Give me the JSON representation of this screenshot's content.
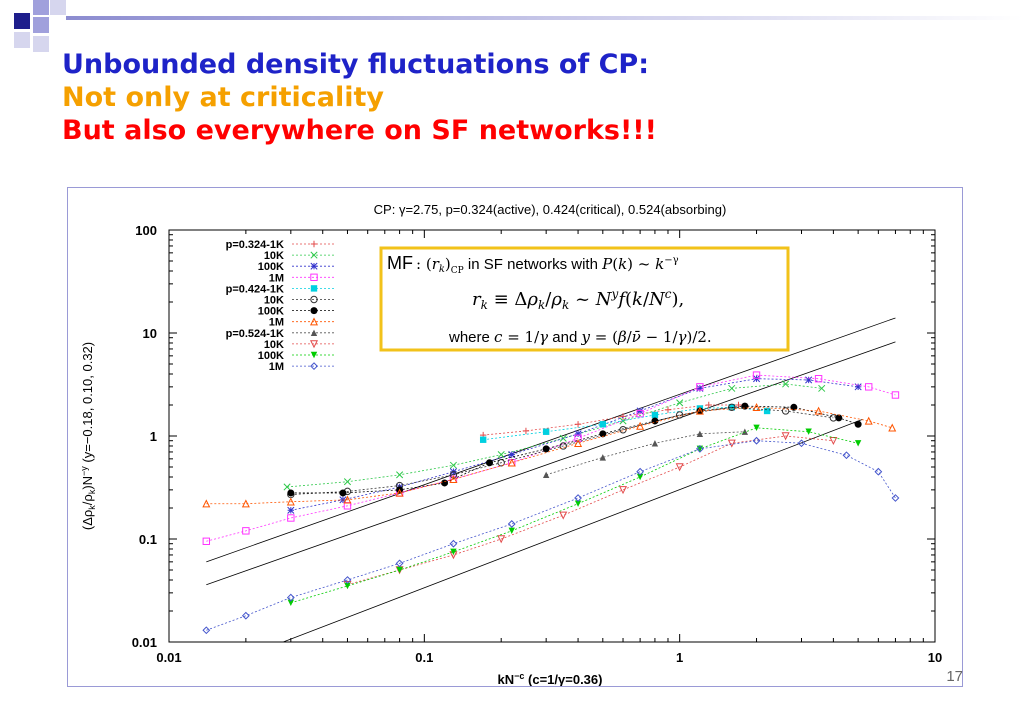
{
  "slide": {
    "title_line1": "Unbounded density fluctuations of CP:",
    "title_line2": "Not only at criticality",
    "title_line3": "But also everywhere on SF networks!!!",
    "page_number": "17"
  },
  "colors": {
    "title_blue": "#1e23c8",
    "title_orange": "#f5a000",
    "title_red": "#ff0000",
    "box_border": "#f2c21a"
  },
  "annotation_box": {
    "line1_prefix": "MF",
    "line1_text": ": (r_k)_CP in SF networks with P(k) ~ k^-γ",
    "line2_text": "r_k ≡ Δρ_k/ρ_k ~ N^y f(k/N^c),",
    "line3_text": "where c = 1/γ and y = (β/ν̄ − 1/γ)/2."
  },
  "chart_data": {
    "type": "scatter",
    "title": "CP: γ=2.75, p=0.324(active), 0.424(critical), 0.524(absorbing)",
    "xlabel": "kN^-c (c=1/γ=0.36)",
    "ylabel": "(Δρ_k/ρ_k)N^-y (y=-0.18, 0.10, 0.32)",
    "xscale": "log",
    "yscale": "log",
    "xlim": [
      0.01,
      10
    ],
    "ylim": [
      0.01,
      100
    ],
    "x_ticks": [
      "0.01",
      "0.1",
      "1",
      "10"
    ],
    "y_ticks": [
      "100",
      "10",
      "1",
      "0.1",
      "0.01"
    ],
    "legend_position": "top-left",
    "series": [
      {
        "name": "p=0.324-1K",
        "color": "#e34a4a",
        "marker": "plus",
        "x": [
          0.17,
          0.25,
          0.4,
          0.6,
          0.9,
          1.3,
          1.7
        ],
        "y": [
          1.02,
          1.12,
          1.3,
          1.55,
          1.8,
          2.0,
          2.0
        ]
      },
      {
        "name": "10K",
        "color": "#2ec84a",
        "marker": "x",
        "x": [
          0.029,
          0.05,
          0.08,
          0.13,
          0.2,
          0.35,
          0.6,
          1.0,
          1.6,
          2.6,
          3.6
        ],
        "y": [
          0.32,
          0.36,
          0.42,
          0.52,
          0.66,
          0.95,
          1.4,
          2.1,
          2.9,
          3.2,
          2.9
        ]
      },
      {
        "name": "100K",
        "color": "#3333cc",
        "marker": "star",
        "x": [
          0.03,
          0.048,
          0.08,
          0.13,
          0.22,
          0.4,
          0.7,
          1.2,
          2.0,
          3.2,
          5.0
        ],
        "y": [
          0.19,
          0.24,
          0.32,
          0.45,
          0.66,
          1.05,
          1.75,
          2.9,
          3.6,
          3.5,
          3.0
        ]
      },
      {
        "name": "1M",
        "color": "#ff33ff",
        "marker": "square",
        "x": [
          0.014,
          0.02,
          0.03,
          0.05,
          0.08,
          0.13,
          0.22,
          0.4,
          0.7,
          1.2,
          2.0,
          3.5,
          5.5,
          7.0
        ],
        "y": [
          0.095,
          0.12,
          0.16,
          0.21,
          0.28,
          0.38,
          0.55,
          0.95,
          1.65,
          3.0,
          3.9,
          3.6,
          3.0,
          2.5
        ]
      },
      {
        "name": "p=0.424-1K",
        "color": "#00d0e0",
        "marker": "filled-square",
        "x": [
          0.17,
          0.3,
          0.5,
          0.8,
          1.2,
          1.6,
          2.2
        ],
        "y": [
          0.92,
          1.1,
          1.3,
          1.6,
          1.85,
          1.9,
          1.75
        ]
      },
      {
        "name": "10K",
        "color": "#333333",
        "marker": "circle",
        "x": [
          0.03,
          0.05,
          0.08,
          0.13,
          0.2,
          0.35,
          0.6,
          1.0,
          1.6,
          2.6,
          4.0
        ],
        "y": [
          0.27,
          0.29,
          0.33,
          0.42,
          0.55,
          0.8,
          1.15,
          1.6,
          1.9,
          1.75,
          1.5
        ]
      },
      {
        "name": "100K",
        "color": "#000000",
        "marker": "filled-circle",
        "x": [
          0.03,
          0.048,
          0.08,
          0.12,
          0.18,
          0.3,
          0.5,
          0.8,
          1.2,
          1.8,
          2.8,
          4.2,
          5.0
        ],
        "y": [
          0.28,
          0.28,
          0.3,
          0.35,
          0.55,
          0.75,
          1.05,
          1.4,
          1.75,
          1.95,
          1.9,
          1.5,
          1.3
        ]
      },
      {
        "name": "1M",
        "color": "#ff5500",
        "marker": "triangle",
        "x": [
          0.014,
          0.02,
          0.03,
          0.05,
          0.08,
          0.13,
          0.22,
          0.4,
          0.7,
          1.2,
          2.0,
          3.5,
          5.5,
          6.8
        ],
        "y": [
          0.22,
          0.22,
          0.23,
          0.24,
          0.28,
          0.38,
          0.55,
          0.85,
          1.25,
          1.75,
          1.9,
          1.75,
          1.4,
          1.2
        ]
      },
      {
        "name": "p=0.524-1K",
        "color": "#555555",
        "marker": "filled-triangle",
        "x": [
          0.3,
          0.5,
          0.8,
          1.2,
          1.8
        ],
        "y": [
          0.42,
          0.62,
          0.85,
          1.05,
          1.1
        ]
      },
      {
        "name": "10K",
        "color": "#e34a4a",
        "marker": "down-triangle",
        "x": [
          0.05,
          0.08,
          0.13,
          0.2,
          0.35,
          0.6,
          1.0,
          1.6,
          2.6,
          4.0
        ],
        "y": [
          0.036,
          0.05,
          0.07,
          0.1,
          0.17,
          0.3,
          0.5,
          0.85,
          1.0,
          0.9
        ]
      },
      {
        "name": "100K",
        "color": "#00cc00",
        "marker": "filled-down-triangle",
        "x": [
          0.03,
          0.05,
          0.08,
          0.13,
          0.22,
          0.4,
          0.7,
          1.2,
          2.0,
          3.2,
          5.0
        ],
        "y": [
          0.024,
          0.035,
          0.05,
          0.075,
          0.12,
          0.22,
          0.4,
          0.75,
          1.2,
          1.1,
          0.85
        ]
      },
      {
        "name": "1M",
        "color": "#4455cc",
        "marker": "diamond",
        "x": [
          0.014,
          0.02,
          0.03,
          0.05,
          0.08,
          0.13,
          0.22,
          0.4,
          0.7,
          1.2,
          2.0,
          3.0,
          4.5,
          6.0,
          7.0
        ],
        "y": [
          0.013,
          0.018,
          0.027,
          0.04,
          0.058,
          0.09,
          0.14,
          0.25,
          0.45,
          0.75,
          0.9,
          0.85,
          0.65,
          0.45,
          0.25
        ]
      }
    ],
    "reference_lines": [
      {
        "x": [
          0.014,
          7.0
        ],
        "y": [
          0.06,
          14.0
        ]
      },
      {
        "x": [
          0.014,
          7.0
        ],
        "y": [
          0.036,
          8.2
        ]
      },
      {
        "x": [
          0.028,
          5.2
        ],
        "y": [
          0.01,
          1.45
        ]
      }
    ]
  }
}
